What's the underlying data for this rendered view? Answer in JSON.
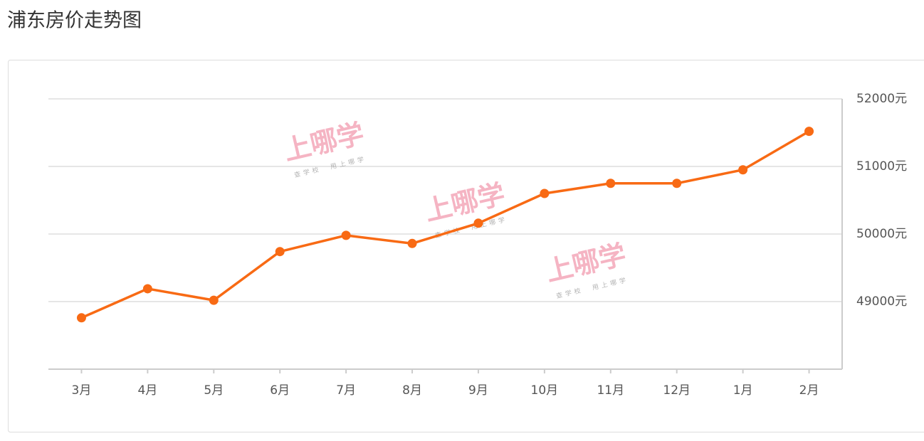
{
  "chart_data": {
    "type": "line",
    "title": "浦东房价走势图",
    "categories": [
      "3月",
      "4月",
      "5月",
      "6月",
      "7月",
      "8月",
      "9月",
      "10月",
      "11月",
      "12月",
      "1月",
      "2月"
    ],
    "values": [
      48760,
      49190,
      49020,
      49740,
      49980,
      49860,
      50160,
      50600,
      50750,
      50750,
      50950,
      51520
    ],
    "color": "#f86a14",
    "ylim": [
      48000,
      52000
    ],
    "yticks": [
      {
        "value": 49000,
        "label": "49000元"
      },
      {
        "value": 50000,
        "label": "50000元"
      },
      {
        "value": 51000,
        "label": "51000元"
      },
      {
        "value": 52000,
        "label": "52000元"
      }
    ],
    "grid": true,
    "watermark": "上哪学",
    "watermark_subtitle": "查学校　用上哪学"
  }
}
